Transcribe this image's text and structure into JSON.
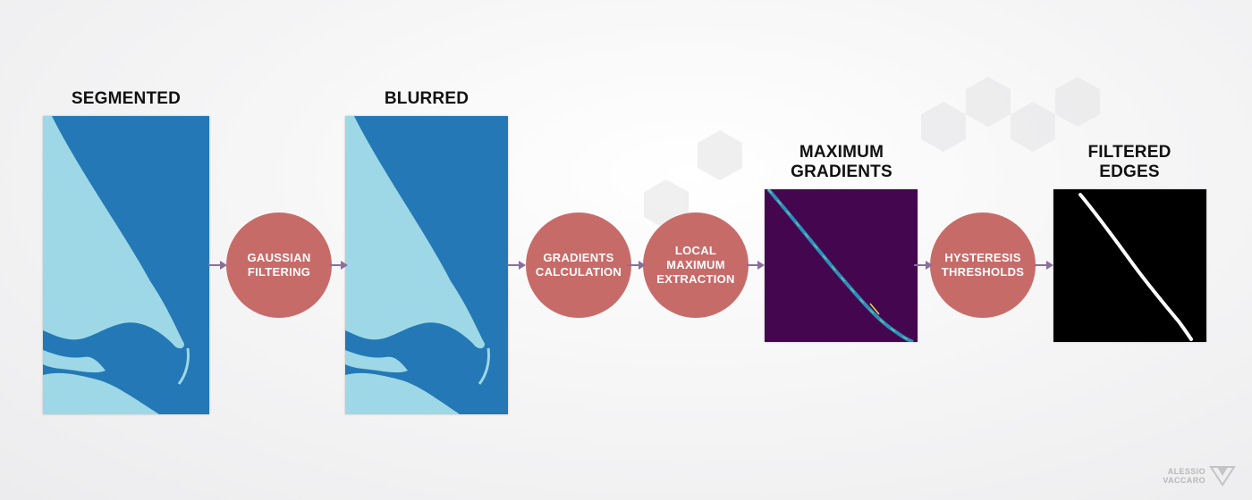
{
  "stages": [
    {
      "title": "SEGMENTED"
    },
    {
      "title": "BLURRED"
    },
    {
      "title_line1": "MAXIMUM",
      "title_line2": "GRADIENTS"
    },
    {
      "title_line1": "FILTERED",
      "title_line2": "EDGES"
    }
  ],
  "steps": [
    {
      "line1": "GAUSSIAN",
      "line2": "FILTERING"
    },
    {
      "line1": "GRADIENTS",
      "line2": "CALCULATION"
    },
    {
      "line1": "LOCAL",
      "line2": "MAXIMUM",
      "line3": "EXTRACTION"
    },
    {
      "line1": "HYSTERESIS",
      "line2": "THRESHOLDS"
    }
  ],
  "watermark": {
    "line1": "ALESSIO",
    "line2": "VACCARO"
  },
  "colors": {
    "step_circle": "#c76b69",
    "arrow": "#8a6f9a",
    "segment_dark": "#2378b5",
    "segment_light": "#9ed8e6",
    "gradient_background": "#44074f",
    "edges_background": "#000000",
    "edge_line": "#ffffff"
  }
}
